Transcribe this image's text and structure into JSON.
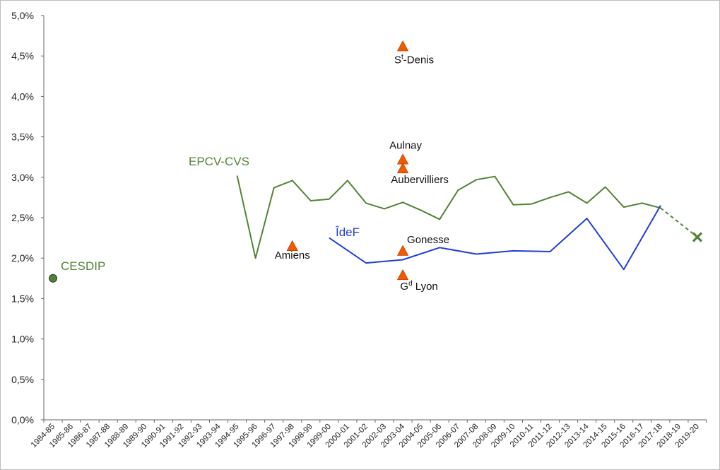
{
  "chart_data": {
    "type": "line",
    "categories": [
      "1984-85",
      "1985-86",
      "1986-87",
      "1987-88",
      "1988-89",
      "1989-90",
      "1990-91",
      "1991-92",
      "1992-93",
      "1993-94",
      "1994-95",
      "1995-96",
      "1996-97",
      "1997-98",
      "1998-99",
      "1999-00",
      "2000-01",
      "2001-02",
      "2002-03",
      "2003-04",
      "2004-05",
      "2005-06",
      "2006-07",
      "2007-08",
      "2008-09",
      "2009-10",
      "2010-11",
      "2011-12",
      "2012-13",
      "2013-14",
      "2014-15",
      "2015-16",
      "2016-17",
      "2017-18",
      "2018-19",
      "2019-20"
    ],
    "y_ticks": [
      "0,0%",
      "0,5%",
      "1,0%",
      "1,5%",
      "2,0%",
      "2,5%",
      "3,0%",
      "3,5%",
      "4,0%",
      "4,5%",
      "5,0%"
    ],
    "ylim": [
      0,
      5
    ],
    "grid": false,
    "series": [
      {
        "name": "EPCV-CVS",
        "color": "#548235",
        "style": "line",
        "points": [
          [
            "1994-95",
            3.02
          ],
          [
            "1995-96",
            2.0
          ],
          [
            "1996-97",
            2.87
          ],
          [
            "1997-98",
            2.96
          ],
          [
            "1998-99",
            2.71
          ],
          [
            "1999-00",
            2.73
          ],
          [
            "2000-01",
            2.96
          ],
          [
            "2001-02",
            2.68
          ],
          [
            "2002-03",
            2.61
          ],
          [
            "2003-04",
            2.69
          ],
          [
            "2004-05",
            2.59
          ],
          [
            "2005-06",
            2.48
          ],
          [
            "2006-07",
            2.84
          ],
          [
            "2007-08",
            2.97
          ],
          [
            "2008-09",
            3.01
          ],
          [
            "2009-10",
            2.66
          ],
          [
            "2010-11",
            2.67
          ],
          [
            "2011-12",
            2.75
          ],
          [
            "2012-13",
            2.82
          ],
          [
            "2013-14",
            2.68
          ],
          [
            "2014-15",
            2.88
          ],
          [
            "2015-16",
            2.63
          ],
          [
            "2016-17",
            2.68
          ],
          [
            "2017-18",
            2.62
          ]
        ]
      },
      {
        "name": "EPCV-CVS projection",
        "color": "#548235",
        "style": "dashed",
        "points": [
          [
            "2017-18",
            2.62
          ],
          [
            "2019-20",
            2.26
          ]
        ]
      },
      {
        "name": "ÎdeF",
        "color": "#1f3fd6",
        "style": "line",
        "points": [
          [
            "1999-00",
            2.25
          ],
          [
            "2001-02",
            1.94
          ],
          [
            "2003-04",
            1.98
          ],
          [
            "2005-06",
            2.13
          ],
          [
            "2007-08",
            2.05
          ],
          [
            "2009-10",
            2.09
          ],
          [
            "2011-12",
            2.08
          ],
          [
            "2013-14",
            2.49
          ],
          [
            "2015-16",
            1.86
          ],
          [
            "2017-18",
            2.65
          ]
        ]
      }
    ],
    "markers": [
      {
        "name": "CESDIP",
        "x": "1984-85",
        "y": 1.75,
        "shape": "circle",
        "color": "#548235"
      },
      {
        "name": "2019-20 point",
        "x": "2019-20",
        "y": 2.26,
        "shape": "cross",
        "color": "#548235"
      },
      {
        "name": "Amiens",
        "x": "1997-98",
        "y": 2.15,
        "shape": "triangle",
        "color": "#f05a00",
        "label": "Amiens"
      },
      {
        "name": "Saint-Denis",
        "x": "2003-04",
        "y": 4.62,
        "shape": "triangle",
        "color": "#f05a00",
        "label_main": "S",
        "label_sup": "t",
        "label_rest": "-Denis"
      },
      {
        "name": "Aulnay",
        "x": "2003-04",
        "y": 3.22,
        "shape": "triangle",
        "color": "#f05a00",
        "label": "Aulnay"
      },
      {
        "name": "Aubervilliers",
        "x": "2003-04",
        "y": 3.11,
        "shape": "triangle",
        "color": "#f05a00",
        "label": "Aubervilliers"
      },
      {
        "name": "Gonesse",
        "x": "2003-04",
        "y": 2.09,
        "shape": "triangle",
        "color": "#f05a00",
        "label": "Gonesse"
      },
      {
        "name": "Grand Lyon",
        "x": "2003-04",
        "y": 1.79,
        "shape": "triangle",
        "color": "#f05a00",
        "label_main": "G",
        "label_sup": "d",
        "label_rest": " Lyon"
      }
    ],
    "series_labels": [
      {
        "text": "EPCV-CVS",
        "color": "#548235"
      },
      {
        "text": "ÎdeF",
        "color": "#1f3fd6"
      },
      {
        "text": "CESDIP",
        "color": "#548235"
      }
    ]
  }
}
